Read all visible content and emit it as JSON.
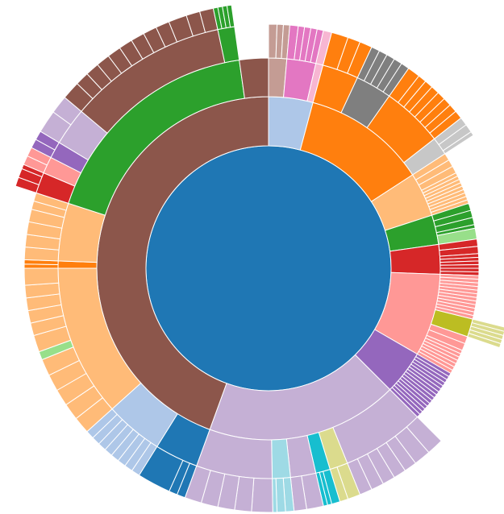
{
  "chart_data": {
    "type": "sunburst",
    "root": {
      "color": "#1f77b4",
      "children": [
        {
          "color": "#aec7e8",
          "children": [
            {
              "color": "#c49c94",
              "children": [
                2,
                1.5,
                1.5
              ]
            },
            {
              "color": "#e377c2",
              "children": [
                2,
                1.5,
                1.5,
                1.5,
                1.5
              ]
            },
            {
              "color": "#f7b6d2",
              "children": [
                2
              ]
            }
          ]
        },
        {
          "color": "#ff7f0e",
          "children": [
            {
              "color": "#ff7f0e",
              "children": [
                4,
                3,
                3
              ]
            },
            {
              "color": "#7f7f7f",
              "children": [
                2,
                2,
                2,
                2,
                2
              ]
            },
            {
              "color": "#ff7f0e",
              "children": [
                3,
                2,
                2,
                2,
                2,
                2,
                2,
                2
              ]
            },
            {
              "color": "#c7c7c7",
              "children": [
                2,
                2,
                1
              ]
            }
          ]
        },
        {
          "color": "#ffbb78",
          "children": [
            2,
            2,
            2,
            1,
            1,
            1,
            1,
            1,
            1,
            1,
            1,
            1
          ]
        },
        {
          "color": "#2ca02c",
          "children": [
            2,
            2,
            2,
            1,
            {
              "color": "#98df8a",
              "value": 3
            }
          ]
        },
        {
          "color": "#d62728",
          "children": [
            2,
            2,
            1,
            1,
            1,
            1,
            1,
            1
          ]
        },
        {
          "color": "#ff9896",
          "children": [
            1,
            1,
            1,
            1,
            1,
            1,
            1,
            1,
            1,
            1,
            1,
            1,
            {
              "color": "#bcbd22",
              "children": [
                {
                  "color": "#dbdb8d",
                  "value": 1
                },
                {
                  "color": "#dbdb8d",
                  "value": 1
                },
                {
                  "color": "#dbdb8d",
                  "value": 1
                },
                {
                  "color": "#dbdb8d",
                  "value": 1
                },
                {
                  "color": "#dbdb8d",
                  "value": 1
                }
              ]
            },
            2,
            2,
            1,
            1,
            1,
            1,
            1,
            1,
            1
          ]
        },
        {
          "color": "#9467bd",
          "children": [
            1,
            1,
            1,
            1,
            1,
            1,
            1,
            1,
            1,
            1,
            1,
            1,
            1,
            1,
            1
          ]
        },
        {
          "color": "#c5b0d5",
          "children": [
            {
              "color": "#c5b0d5",
              "children": [
                4,
                4,
                3,
                3,
                3,
                3,
                3
              ]
            },
            {
              "color": "#dbdb8d",
              "children": [
                3,
                2
              ]
            },
            {
              "color": "#17becf",
              "children": [
                2,
                1,
                1
              ]
            },
            {
              "color": "#c5b0d5",
              "children": [
                4,
                3
              ]
            },
            {
              "color": "#9edae5",
              "children": [
                2,
                2,
                1
              ]
            },
            {
              "color": "#c5b0d5",
              "children": [
                5,
                4,
                4,
                4,
                4
              ]
            }
          ]
        },
        {
          "color": "#8c564b",
          "children": [
            {
              "color": "#1f77b4",
              "children": [
                2,
                2,
                8
              ]
            },
            {
              "color": "#aec7e8",
              "children": [
                2,
                2,
                2,
                2,
                2,
                2,
                2,
                2
              ]
            },
            {
              "color": "#ffbb78",
              "children": [
                4,
                4,
                4,
                4,
                4,
                {
                  "color": "#98df8a",
                  "value": 2
                },
                4,
                3,
                3,
                3,
                3,
                4
              ]
            },
            {
              "color": "#ff7f0e",
              "children": [
                1,
                1
              ]
            },
            {
              "color": "#ffbb78",
              "children": [
                3,
                3,
                3,
                3,
                2,
                2
              ]
            },
            {
              "color": "#2ca02c",
              "children": [
                {
                  "color": "#d62728",
                  "children": [
                    2,
                    2,
                    1
                  ]
                },
                {
                  "color": "#ff9896",
                  "children": [
                    2,
                    2
                  ]
                },
                {
                  "color": "#9467bd",
                  "children": [
                    2,
                    2
                  ]
                },
                {
                  "color": "#c5b0d5",
                  "children": [
                    5,
                    4
                  ]
                },
                {
                  "color": "#8c564b",
                  "children": [
                    4,
                    3,
                    3,
                    3,
                    3,
                    3,
                    3,
                    3,
                    3,
                    4,
                    3,
                    3
                  ]
                },
                {
                  "color": "#2ca02c",
                  "children": [
                    1,
                    1,
                    1,
                    1
                  ]
                }
              ]
            },
            8
          ]
        }
      ]
    }
  }
}
